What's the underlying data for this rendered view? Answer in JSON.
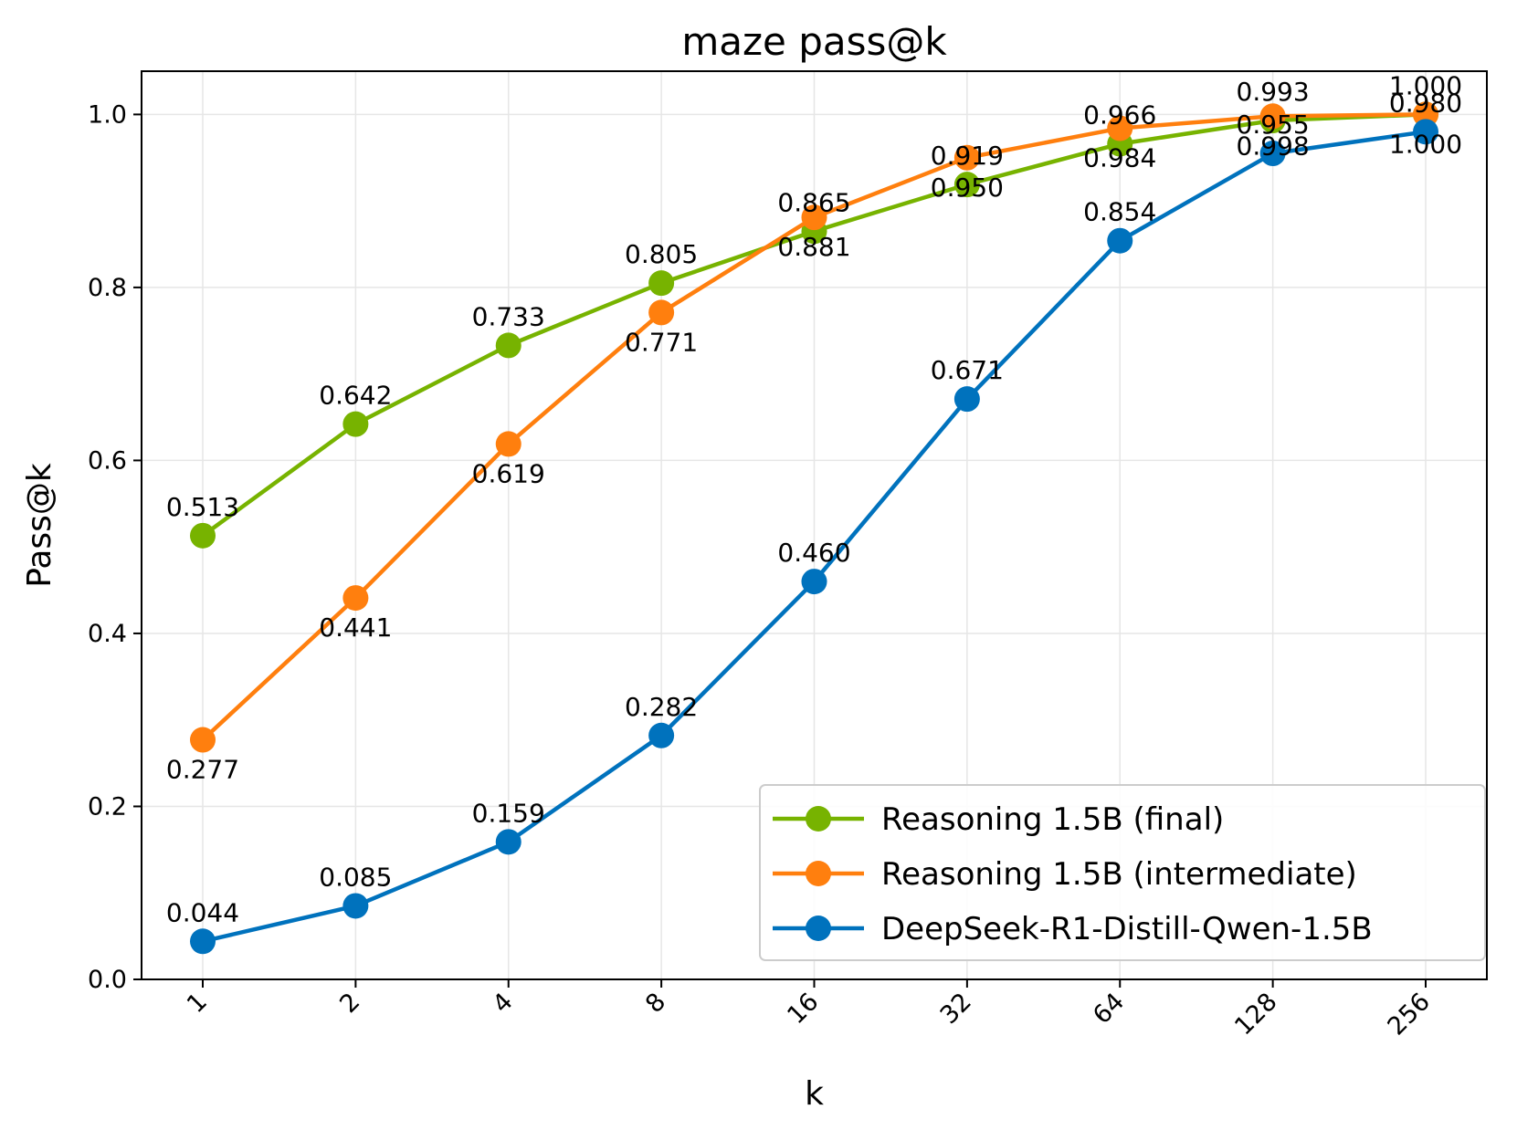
{
  "chart_data": {
    "type": "line",
    "title": "maze pass@k",
    "xlabel": "k",
    "ylabel": "Pass@k",
    "categories": [
      "1",
      "2",
      "4",
      "8",
      "16",
      "32",
      "64",
      "128",
      "256"
    ],
    "yticks": [
      "0.0",
      "0.2",
      "0.4",
      "0.6",
      "0.8",
      "1.0"
    ],
    "ylim": [
      0,
      1.05
    ],
    "grid": true,
    "legend_position": "bottom-right",
    "series": [
      {
        "name": "Reasoning 1.5B (final)",
        "color": "#77b300",
        "values": [
          0.513,
          0.642,
          0.733,
          0.805,
          0.865,
          0.919,
          0.966,
          0.993,
          1.0
        ],
        "labels": [
          "0.513",
          "0.642",
          "0.733",
          "0.805",
          "0.865",
          "0.919",
          "0.966",
          "0.993",
          "1.000"
        ],
        "label_side": [
          "above",
          "above",
          "above",
          "above",
          "above",
          "above",
          "above",
          "above",
          "above"
        ]
      },
      {
        "name": "Reasoning 1.5B (intermediate)",
        "color": "#ff7f0e",
        "values": [
          0.277,
          0.441,
          0.619,
          0.771,
          0.881,
          0.95,
          0.984,
          0.998,
          1.0
        ],
        "labels": [
          "0.277",
          "0.441",
          "0.619",
          "0.771",
          "0.881",
          "0.950",
          "0.984",
          "0.998",
          "1.000"
        ],
        "label_side": [
          "below",
          "below",
          "below",
          "below",
          "below",
          "below",
          "below",
          "below",
          "below"
        ]
      },
      {
        "name": "DeepSeek-R1-Distill-Qwen-1.5B",
        "color": "#0072bd",
        "values": [
          0.044,
          0.085,
          0.159,
          0.282,
          0.46,
          0.671,
          0.854,
          0.955,
          0.98
        ],
        "labels": [
          "0.044",
          "0.085",
          "0.159",
          "0.282",
          "0.460",
          "0.671",
          "0.854",
          "0.955",
          "0.980"
        ],
        "label_side": [
          "above",
          "above",
          "above",
          "above",
          "above",
          "above",
          "above",
          "above",
          "above"
        ]
      }
    ]
  }
}
